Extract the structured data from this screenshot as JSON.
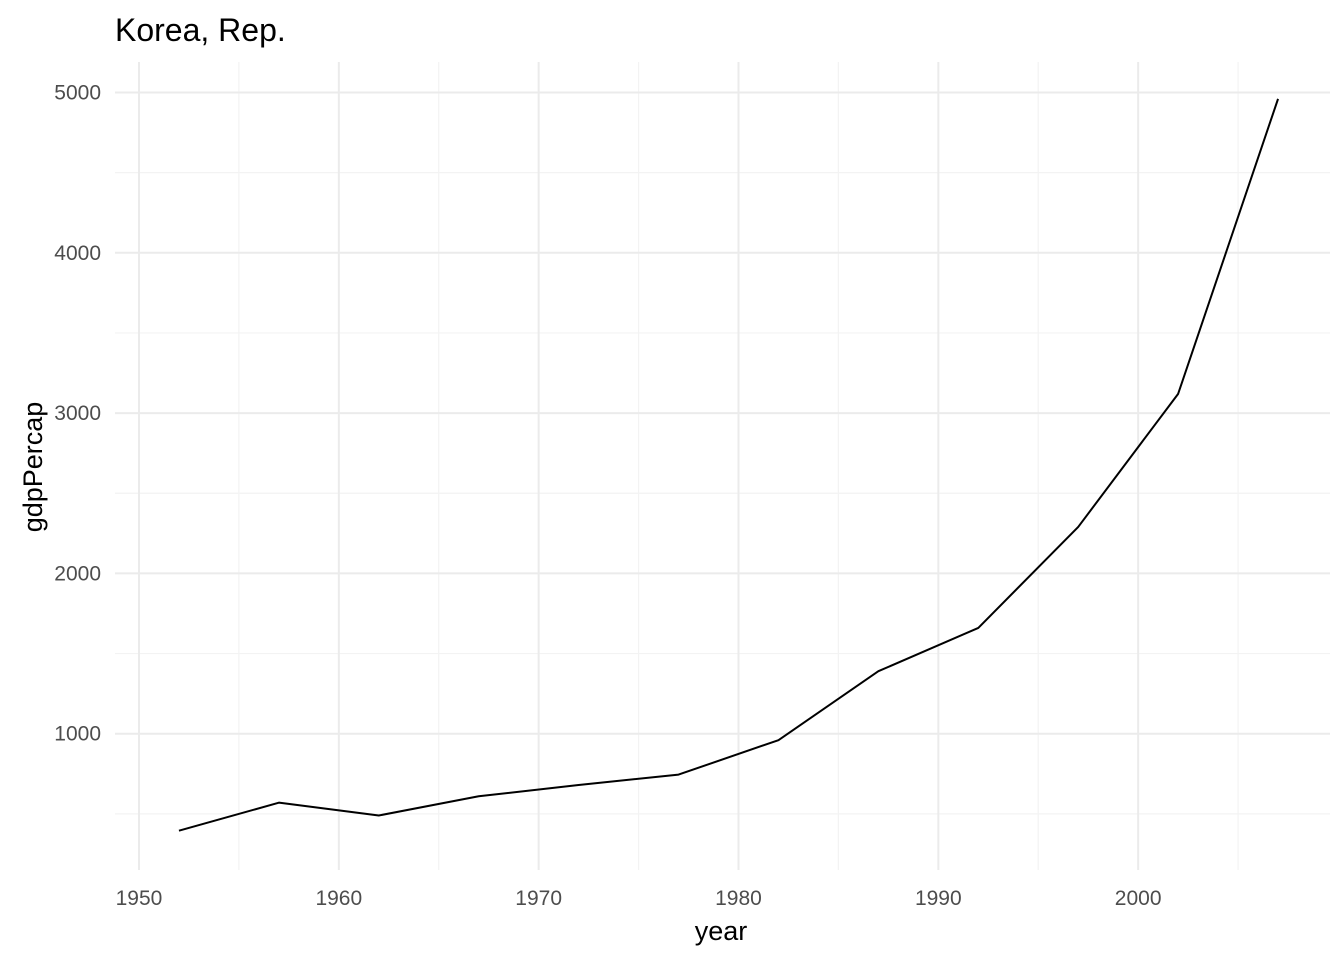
{
  "chart_data": {
    "type": "line",
    "title": "Korea, Rep.",
    "xlabel": "year",
    "ylabel": "gdpPercap",
    "x": [
      1952,
      1957,
      1962,
      1967,
      1972,
      1977,
      1982,
      1987,
      1992,
      1997,
      2002,
      2007
    ],
    "series": [
      {
        "values": [
          395,
          570,
          490,
          610,
          680,
          745,
          960,
          1390,
          1660,
          2290,
          3120,
          4960
        ]
      }
    ],
    "xlim": [
      1948.8,
      2009.6
    ],
    "ylim": [
      150,
      5190
    ],
    "x_ticks": [
      1950,
      1960,
      1970,
      1980,
      1990,
      2000
    ],
    "x_tick_labels": [
      "1950",
      "1960",
      "1970",
      "1980",
      "1990",
      "2000"
    ],
    "x_minor_ticks": [
      1955,
      1965,
      1975,
      1985,
      1995,
      2005
    ],
    "y_ticks": [
      1000,
      2000,
      3000,
      4000,
      5000
    ],
    "y_tick_labels": [
      "1000",
      "2000",
      "3000",
      "4000",
      "5000"
    ],
    "y_minor_ticks": [
      500,
      1500,
      2500,
      3500,
      4500
    ],
    "grid": true,
    "line_color": "#000000",
    "grid_color": "#ebebeb",
    "legend": "none"
  }
}
